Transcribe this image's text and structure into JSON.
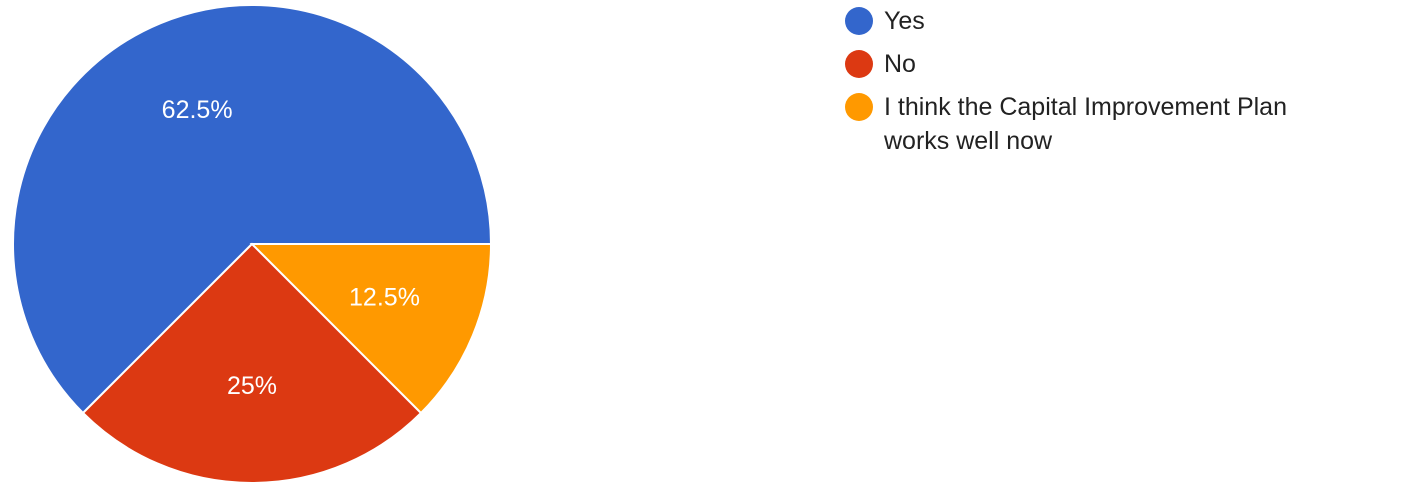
{
  "chart_data": {
    "type": "pie",
    "slices": [
      {
        "label": "Yes",
        "value": 62.5,
        "display": "62.5%",
        "color": "#3366cc"
      },
      {
        "label": "No",
        "value": 25,
        "display": "25%",
        "color": "#dc3912"
      },
      {
        "label": "I think the Capital Improvement Plan works well now",
        "value": 12.5,
        "display": "12.5%",
        "color": "#ff9900"
      }
    ],
    "start_angle": "3 o'clock, counter-clockwise",
    "legend_position": "right"
  }
}
